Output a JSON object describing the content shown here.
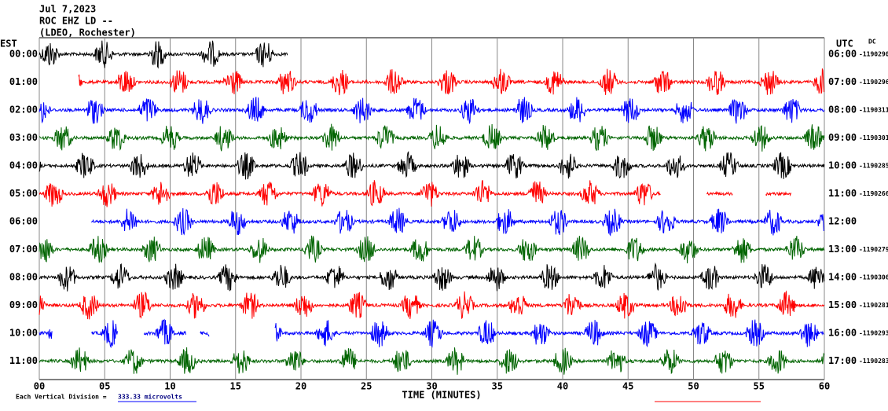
{
  "header": {
    "lines": [
      "Jul 7,2023",
      "ROC EHZ LD --",
      "(LDEO, Rochester)"
    ],
    "left_zone": "EST",
    "right_zone": "UTC",
    "right_note": "DC"
  },
  "xaxis": {
    "label": "TIME (MINUTES)",
    "xlim": [
      0,
      60
    ],
    "ticks": [
      {
        "value": 0,
        "label": "00"
      },
      {
        "value": 5,
        "label": "05"
      },
      10,
      15,
      20,
      25,
      30,
      35,
      40,
      45,
      50,
      55,
      60
    ]
  },
  "footer": {
    "prefix": "Each Vertical Division =",
    "scale": "333.33 microvolts"
  },
  "rows": [
    {
      "left": "00:00",
      "right": "06:00",
      "count": "-1190290",
      "color": "#000000",
      "segments": [
        [
          0,
          19
        ]
      ]
    },
    {
      "left": "01:00",
      "right": "07:00",
      "count": "-1190296",
      "color": "#ff0000",
      "segments": [
        [
          3,
          60
        ]
      ]
    },
    {
      "left": "02:00",
      "right": "08:00",
      "count": "-1190311",
      "color": "#0000ff",
      "segments": [
        [
          0,
          60
        ]
      ]
    },
    {
      "left": "03:00",
      "right": "09:00",
      "count": "-1190301",
      "color": "#006400",
      "segments": [
        [
          0,
          60
        ]
      ]
    },
    {
      "left": "04:00",
      "right": "10:00",
      "count": "-1190285",
      "color": "#000000",
      "segments": [
        [
          0,
          60
        ]
      ]
    },
    {
      "left": "05:00",
      "right": "11:00",
      "count": "-1190266",
      "color": "#ff0000",
      "segments": [
        [
          0,
          47.5
        ],
        [
          51,
          53
        ],
        [
          55.5,
          57.5
        ]
      ]
    },
    {
      "left": "06:00",
      "right": "12:00",
      "color": "#0000ff",
      "segments": [
        [
          4,
          60
        ]
      ]
    },
    {
      "left": "07:00",
      "right": "13:00",
      "count": "-1190279",
      "color": "#006400",
      "segments": [
        [
          0,
          60
        ]
      ]
    },
    {
      "left": "08:00",
      "right": "14:00",
      "count": "-1190306",
      "color": "#000000",
      "segments": [
        [
          0,
          60
        ]
      ]
    },
    {
      "left": "09:00",
      "right": "15:00",
      "count": "-1190281",
      "color": "#ff0000",
      "segments": [
        [
          0,
          60
        ]
      ]
    },
    {
      "left": "10:00",
      "right": "16:00",
      "count": "-1190293",
      "color": "#0000ff",
      "segments": [
        [
          0,
          1
        ],
        [
          4,
          6
        ],
        [
          8,
          11.2
        ],
        [
          12.3,
          13
        ],
        [
          18,
          60
        ]
      ]
    },
    {
      "left": "11:00",
      "right": "17:00",
      "count": "-1190283",
      "color": "#006400",
      "segments": [
        [
          0,
          60
        ]
      ]
    }
  ]
}
